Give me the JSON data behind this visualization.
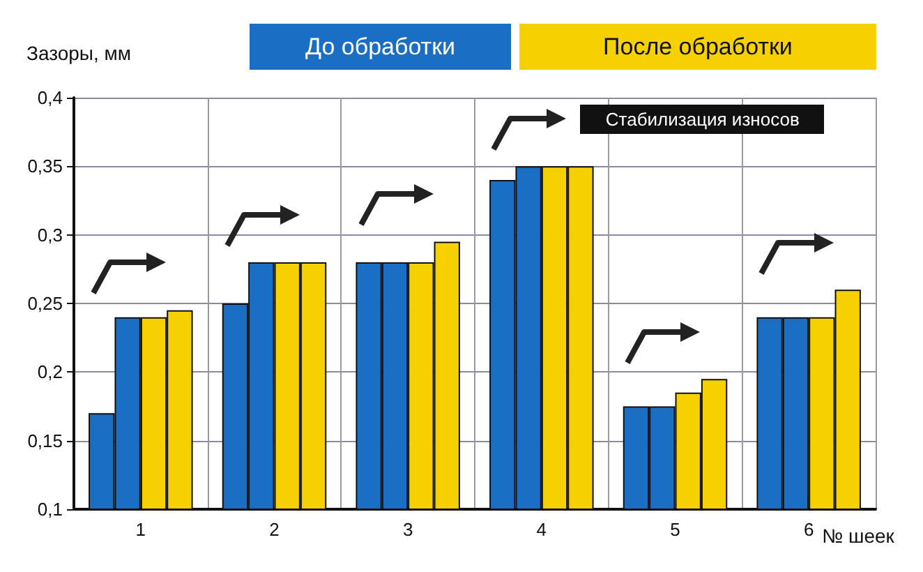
{
  "chart_data": {
    "type": "bar",
    "ylabel": "Зазоры, мм",
    "xlabel": "№ шеек",
    "categories": [
      "1",
      "2",
      "3",
      "4",
      "5",
      "6"
    ],
    "series": [
      {
        "name": "До обработки",
        "color": "#1a6fc4",
        "values": [
          0.17,
          0.25,
          0.28,
          0.34,
          0.175,
          0.24
        ]
      },
      {
        "color": "#1a6fc4",
        "values": [
          0.24,
          0.28,
          0.28,
          0.35,
          0.175,
          0.24
        ]
      },
      {
        "name": "После обработки",
        "color": "#f7d000",
        "values": [
          0.24,
          0.28,
          0.28,
          0.35,
          0.185,
          0.24
        ]
      },
      {
        "color": "#f7d000",
        "values": [
          0.245,
          0.28,
          0.295,
          0.35,
          0.195,
          0.26
        ]
      }
    ],
    "ylim": [
      0.1,
      0.4
    ],
    "yticks": [
      {
        "value": 0.1,
        "label": "0,1"
      },
      {
        "value": 0.15,
        "label": "0,15"
      },
      {
        "value": 0.2,
        "label": "0,2"
      },
      {
        "value": 0.25,
        "label": "0,25"
      },
      {
        "value": 0.3,
        "label": "0,3"
      },
      {
        "value": 0.35,
        "label": "0,35"
      },
      {
        "value": 0.4,
        "label": "0,4"
      }
    ],
    "grid": true,
    "legend": "top",
    "annotations": [
      "Стабилизация износов"
    ]
  }
}
